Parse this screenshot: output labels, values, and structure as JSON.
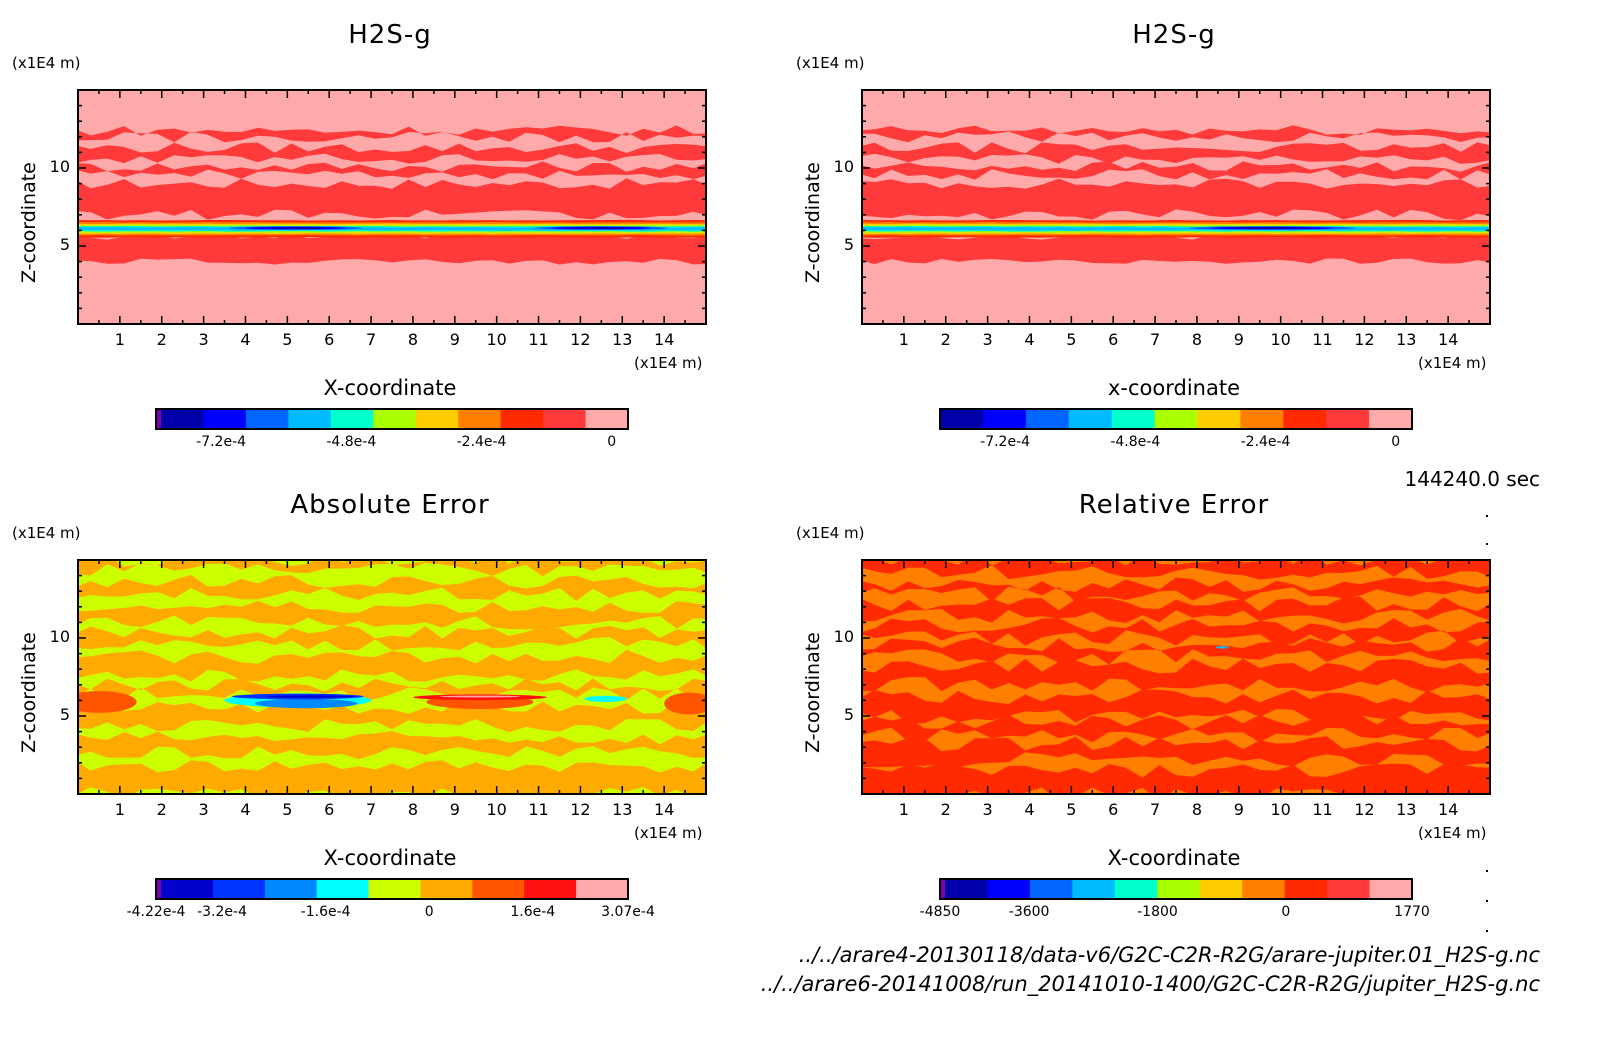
{
  "time_label": "144240.0 sec",
  "file_paths": [
    "../../arare4-20130118/data-v6/G2C-C2R-R2G/arare-jupiter.01_H2S-g.nc",
    "../../arare6-20141008/run_20141010-1400/G2C-C2R-R2G/jupiter_H2S-g.nc"
  ],
  "chart_data": [
    {
      "type": "heatmap",
      "panel": "top-left",
      "title": "H2S-g",
      "xlabel": "X-coordinate",
      "ylabel": "Z-coordinate",
      "x_unit": "(x1E4 m)",
      "y_unit": "(x1E4 m)",
      "xlim": [
        0,
        15
      ],
      "ylim": [
        0,
        15
      ],
      "x_ticks": [
        "1",
        "2",
        "3",
        "4",
        "5",
        "6",
        "7",
        "8",
        "9",
        "10",
        "11",
        "12",
        "13",
        "14"
      ],
      "y_ticks": [
        "5",
        "10"
      ],
      "colorbar": {
        "colors": [
          "#0000aa",
          "#0000ff",
          "#0066ff",
          "#00bbff",
          "#00ffcc",
          "#aaff00",
          "#ffcc00",
          "#ff7f00",
          "#ff2a00",
          "#ff3a3a",
          "#ffaaaa"
        ],
        "underflow_color": "#7f00aa",
        "tick_labels": [
          "-7.2e-4",
          "-4.8e-4",
          "-2.4e-4",
          "0"
        ],
        "tick_values": [
          -0.00072,
          -0.00048,
          -0.00024,
          0
        ],
        "range": [
          -0.00084,
          3e-05
        ]
      },
      "features": "Negative anomaly band centered at z≈6 spanning full x; minima near x≈5 and x≈12.5; values near 0 elsewhere with striated layers above z≈7",
      "band_z_center": 6.1,
      "minima_x": [
        5.2,
        12.5
      ]
    },
    {
      "type": "heatmap",
      "panel": "top-right",
      "title": "H2S-g",
      "xlabel": "x-coordinate",
      "ylabel": "Z-coordinate",
      "x_unit": "(x1E4 m)",
      "y_unit": "(x1E4 m)",
      "xlim": [
        0,
        15
      ],
      "ylim": [
        0,
        15
      ],
      "x_ticks": [
        "1",
        "2",
        "3",
        "4",
        "5",
        "6",
        "7",
        "8",
        "9",
        "10",
        "11",
        "12",
        "13",
        "14"
      ],
      "y_ticks": [
        "5",
        "10"
      ],
      "colorbar": {
        "colors": [
          "#0000aa",
          "#0000ff",
          "#0066ff",
          "#00bbff",
          "#00ffcc",
          "#aaff00",
          "#ffcc00",
          "#ff7f00",
          "#ff2a00",
          "#ff3a3a",
          "#ffaaaa"
        ],
        "tick_labels": [
          "-7.2e-4",
          "-4.8e-4",
          "-2.4e-4",
          "0"
        ],
        "tick_values": [
          -0.00072,
          -0.00048,
          -0.00024,
          0
        ],
        "range": [
          -0.00084,
          3e-05
        ]
      },
      "features": "Negative anomaly band centered at z≈6 spanning full x; broad minimum near x≈9–10.5",
      "band_z_center": 6.1,
      "minima_x": [
        9.8
      ]
    },
    {
      "type": "heatmap",
      "panel": "bottom-left",
      "title": "Absolute Error",
      "xlabel": "X-coordinate",
      "ylabel": "Z-coordinate",
      "x_unit": "(x1E4 m)",
      "y_unit": "(x1E4 m)",
      "xlim": [
        0,
        15
      ],
      "ylim": [
        0,
        15
      ],
      "x_ticks": [
        "1",
        "2",
        "3",
        "4",
        "5",
        "6",
        "7",
        "8",
        "9",
        "10",
        "11",
        "12",
        "13",
        "14"
      ],
      "y_ticks": [
        "5",
        "10"
      ],
      "colorbar": {
        "colors": [
          "#0000cc",
          "#0033ff",
          "#0088ff",
          "#00ffff",
          "#ccff00",
          "#ffaa00",
          "#ff5500",
          "#ff1111",
          "#ffaaaa"
        ],
        "underflow_color": "#7f00aa",
        "tick_labels": [
          "-4.22e-4",
          "-3.2e-4",
          "-1.6e-4",
          "0",
          "1.6e-4",
          "3.07e-4"
        ],
        "tick_values": [
          -0.000422,
          -0.00032,
          -0.00016,
          0,
          0.00016,
          0.000307
        ],
        "range": [
          -0.000422,
          0.000307
        ]
      },
      "features": "Mostly near zero (yellow/orange); negative lobe at z≈6, x≈3.5–7; positive lobe at z≈6, x≈8–11",
      "negative_lobe_x": [
        3.5,
        7.0
      ],
      "positive_lobe_x": [
        8.0,
        11.2
      ]
    },
    {
      "type": "heatmap",
      "panel": "bottom-right",
      "title": "Relative Error",
      "xlabel": "X-coordinate",
      "ylabel": "Z-coordinate",
      "x_unit": "(x1E4 m)",
      "y_unit": "(x1E4 m)",
      "xlim": [
        0,
        15
      ],
      "ylim": [
        0,
        15
      ],
      "x_ticks": [
        "1",
        "2",
        "3",
        "4",
        "5",
        "6",
        "7",
        "8",
        "9",
        "10",
        "11",
        "12",
        "13",
        "14"
      ],
      "y_ticks": [
        "5",
        "10"
      ],
      "colorbar": {
        "colors": [
          "#0000aa",
          "#0000ff",
          "#0066ff",
          "#00bbff",
          "#00ffcc",
          "#aaff00",
          "#ffcc00",
          "#ff7f00",
          "#ff2a00",
          "#ff3a3a",
          "#ffaaaa"
        ],
        "underflow_color": "#7f00aa",
        "tick_labels": [
          "-4850",
          "-3600",
          "-1800",
          "0",
          "1770"
        ],
        "tick_values": [
          -4850,
          -3600,
          -1800,
          0,
          1770
        ],
        "range": [
          -4850,
          1770
        ]
      },
      "features": "Nearly all values in the two bins adjacent to 0 (orange and red-orange) with striated structure"
    }
  ]
}
